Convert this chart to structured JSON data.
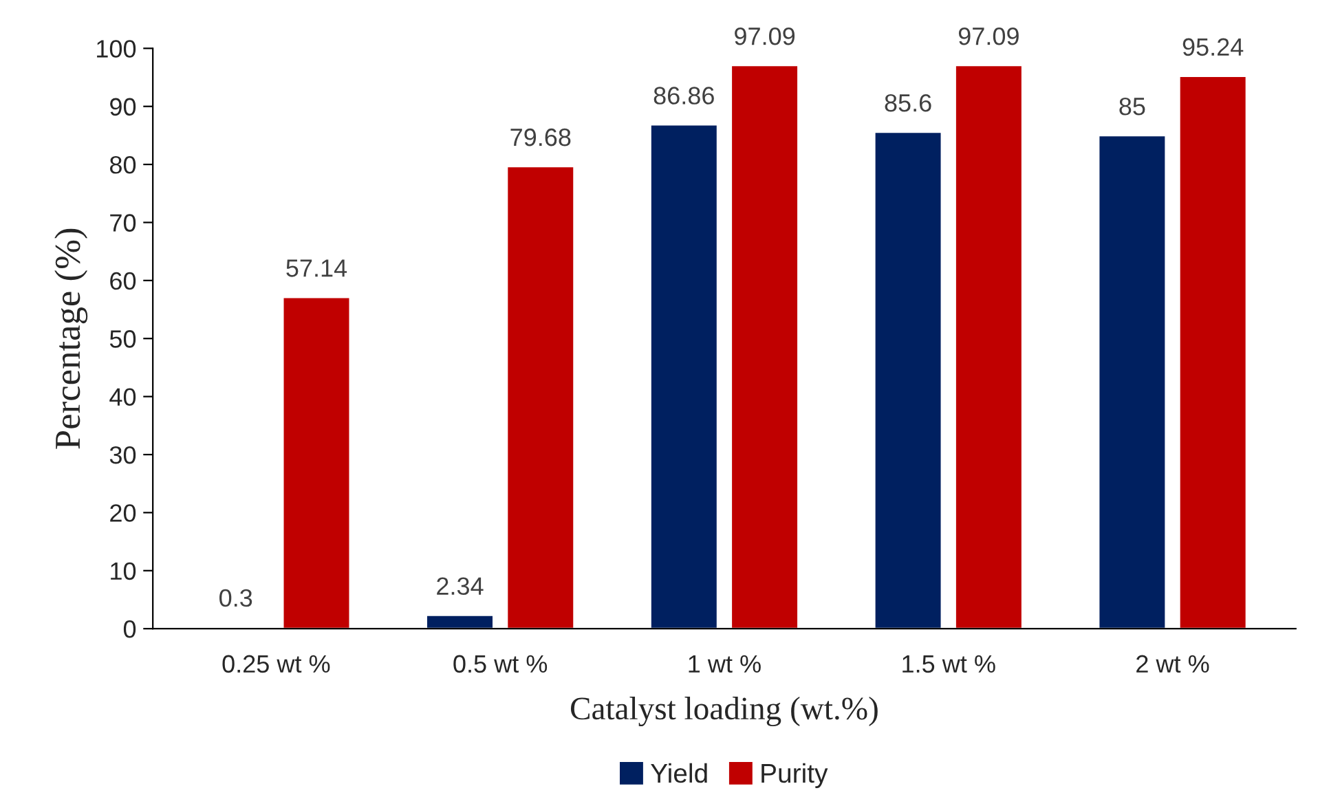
{
  "chart_data": {
    "type": "bar",
    "xlabel": "Catalyst loading (wt.%)",
    "ylabel": "Percentage (%)",
    "categories": [
      "0.25 wt %",
      "0.5 wt %",
      "1 wt %",
      "1.5 wt %",
      "2 wt %"
    ],
    "series": [
      {
        "name": "Yield",
        "color": "#002060",
        "values": [
          0.3,
          2.34,
          86.86,
          85.6,
          85
        ]
      },
      {
        "name": "Purity",
        "color": "#c00000",
        "values": [
          57.14,
          79.68,
          97.09,
          97.09,
          95.24
        ]
      }
    ],
    "ylim": [
      0,
      100
    ],
    "yticks": [
      0,
      10,
      20,
      30,
      40,
      50,
      60,
      70,
      80,
      90,
      100
    ],
    "data_labels": true,
    "legend": "bottom",
    "grid": false
  }
}
